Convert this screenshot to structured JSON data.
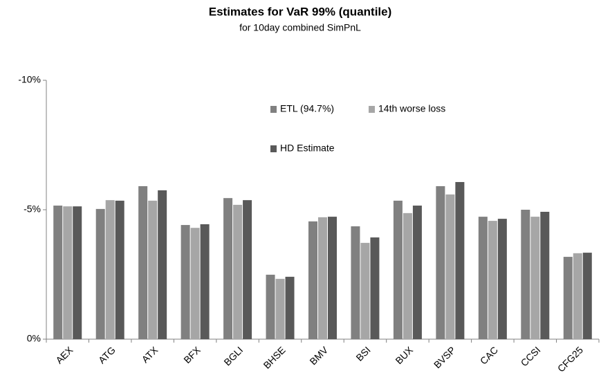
{
  "chart_data": {
    "type": "bar",
    "title": "Estimates for VaR 99% (quantile)",
    "subtitle": "for 10day combined SimPnL",
    "categories": [
      "AEX",
      "ATG",
      "ATX",
      "BFX",
      "BGLI",
      "BHSE",
      "BMV",
      "BSI",
      "BUX",
      "BVSP",
      "CAC",
      "CCSI",
      "CFG25"
    ],
    "series": [
      {
        "name": "ETL (94.7%)",
        "color": "#808080",
        "values": [
          -5.16,
          -5.03,
          -5.91,
          -4.41,
          -5.45,
          -2.49,
          -4.55,
          -4.36,
          -5.35,
          -5.91,
          -4.73,
          -5.0,
          -3.18
        ]
      },
      {
        "name": "14th worse loss",
        "color": "#a6a6a6",
        "values": [
          -5.13,
          -5.37,
          -5.35,
          -4.3,
          -5.19,
          -2.33,
          -4.71,
          -3.72,
          -4.87,
          -5.59,
          -4.57,
          -4.73,
          -3.32
        ]
      },
      {
        "name": "HD Estimate",
        "color": "#595959",
        "values": [
          -5.13,
          -5.35,
          -5.75,
          -4.44,
          -5.37,
          -2.41,
          -4.73,
          -3.93,
          -5.16,
          -6.07,
          -4.65,
          -4.92,
          -3.34
        ]
      }
    ],
    "ylim": [
      0,
      -10
    ],
    "yticks": [
      {
        "value": 0,
        "label": "0%"
      },
      {
        "value": -5,
        "label": "-5%"
      },
      {
        "value": -10,
        "label": "-10%"
      }
    ],
    "grid": false
  }
}
